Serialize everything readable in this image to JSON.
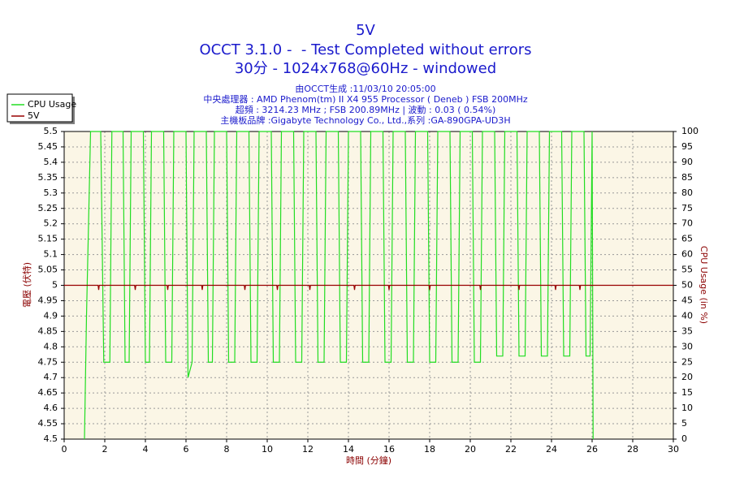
{
  "chart_data": {
    "type": "line",
    "title": "5V",
    "subtitles": [
      "OCCT 3.1.0 -  - Test Completed without errors",
      "30分 - 1024x768@60Hz - windowed"
    ],
    "info_lines": [
      "由OCCT生成 :11/03/10 20:05:00",
      "中央處理器 : AMD Phenom(tm) II X4 955 Processor ( Deneb ) FSB 200MHz",
      "超頻 : 3214.23 MHz ; FSB 200.89MHz | 波動 : 0.03 ( 0.54%)",
      "主機板品牌 :Gigabyte Technology Co., Ltd.,系列 :GA-890GPA-UD3H"
    ],
    "x_label": "時間 (分鐘)",
    "y_label": "電壓 (伏特)",
    "y2_label": "CPU Usage (in %)",
    "xlim": [
      0,
      30
    ],
    "xticks": [
      0,
      2,
      4,
      6,
      8,
      10,
      12,
      14,
      16,
      18,
      20,
      22,
      24,
      26,
      28,
      30
    ],
    "ylim": [
      4.5,
      5.5
    ],
    "yticks": [
      4.5,
      4.55,
      4.6,
      4.65,
      4.7,
      4.75,
      4.8,
      4.85,
      4.9,
      4.95,
      5,
      5.05,
      5.1,
      5.15,
      5.2,
      5.25,
      5.3,
      5.35,
      5.4,
      5.45,
      5.5
    ],
    "y2lim": [
      0,
      100
    ],
    "y2ticks": [
      0,
      5,
      10,
      15,
      20,
      25,
      30,
      35,
      40,
      45,
      50,
      55,
      60,
      65,
      70,
      75,
      80,
      85,
      90,
      95,
      100
    ],
    "grid": true,
    "legend": "top-left",
    "series": [
      {
        "name": "CPU Usage",
        "color": "#22dd22",
        "axis": "y2",
        "x": [
          1.0,
          1.1,
          1.3,
          1.8,
          1.95,
          2.25,
          2.35,
          2.9,
          3.0,
          3.2,
          3.3,
          3.9,
          4.0,
          4.2,
          4.3,
          4.9,
          5.0,
          5.3,
          5.4,
          6.0,
          6.1,
          6.3,
          6.4,
          7.0,
          7.1,
          7.3,
          7.4,
          8.0,
          8.1,
          8.4,
          8.5,
          9.1,
          9.2,
          9.5,
          9.6,
          10.2,
          10.3,
          10.6,
          10.7,
          11.3,
          11.4,
          11.7,
          11.8,
          12.4,
          12.5,
          12.8,
          12.9,
          13.5,
          13.6,
          13.9,
          14.0,
          14.6,
          14.7,
          15.0,
          15.1,
          15.7,
          15.8,
          16.1,
          16.2,
          16.8,
          16.9,
          17.2,
          17.3,
          17.9,
          18.0,
          18.3,
          18.4,
          19.0,
          19.1,
          19.4,
          19.5,
          20.1,
          20.2,
          20.5,
          20.6,
          21.2,
          21.3,
          21.6,
          21.7,
          22.3,
          22.4,
          22.7,
          22.8,
          23.4,
          23.5,
          23.8,
          23.9,
          24.5,
          24.6,
          24.9,
          25.0,
          25.6,
          25.7,
          25.9,
          26.0,
          26.05
        ],
        "values": [
          0,
          40,
          100,
          100,
          25,
          25,
          100,
          100,
          25,
          25,
          100,
          100,
          25,
          25,
          100,
          100,
          25,
          25,
          100,
          100,
          20,
          25,
          100,
          100,
          25,
          25,
          100,
          100,
          25,
          25,
          100,
          100,
          25,
          25,
          100,
          100,
          25,
          25,
          100,
          100,
          25,
          25,
          100,
          100,
          25,
          25,
          100,
          100,
          25,
          25,
          100,
          100,
          25,
          25,
          100,
          100,
          25,
          25,
          100,
          100,
          25,
          25,
          100,
          100,
          25,
          25,
          100,
          100,
          25,
          25,
          100,
          100,
          25,
          25,
          100,
          100,
          27,
          27,
          100,
          100,
          27,
          27,
          100,
          100,
          27,
          27,
          100,
          100,
          27,
          27,
          100,
          100,
          27,
          27,
          100,
          0
        ]
      },
      {
        "name": "5V",
        "color": "#990000",
        "x": [
          0,
          1.67,
          1.7,
          1.73,
          3.47,
          3.5,
          3.53,
          5.07,
          5.1,
          5.13,
          6.77,
          6.8,
          6.83,
          8.87,
          8.9,
          8.93,
          10.47,
          10.5,
          10.53,
          12.07,
          12.1,
          12.13,
          14.27,
          14.3,
          14.33,
          15.97,
          16.0,
          16.03,
          17.97,
          18.0,
          18.03,
          20.47,
          20.5,
          20.53,
          22.37,
          22.4,
          22.43,
          24.17,
          24.2,
          24.23,
          25.37,
          25.4,
          25.43,
          30
        ],
        "values": [
          5,
          5,
          4.985,
          5,
          5,
          4.985,
          5,
          5,
          4.985,
          5,
          5,
          4.985,
          5,
          5,
          4.985,
          5,
          5,
          4.985,
          5,
          5,
          4.985,
          5,
          5,
          4.985,
          5,
          5,
          4.985,
          5,
          5,
          4.985,
          5,
          5,
          4.985,
          5,
          5,
          4.985,
          5,
          5,
          4.985,
          5,
          5,
          4.985,
          5,
          5
        ]
      }
    ]
  }
}
